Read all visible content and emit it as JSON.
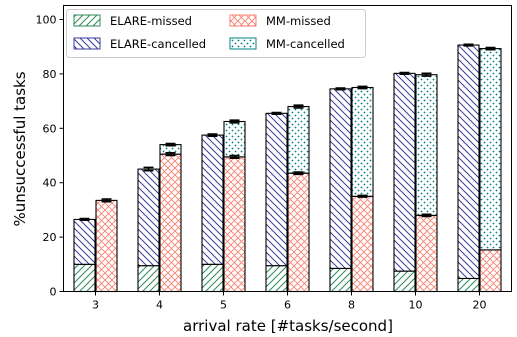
{
  "chart_data": {
    "type": "bar",
    "stacked": true,
    "grouped": true,
    "xlabel": "arrival rate [#tasks/second]",
    "ylabel": "%unsuccessful tasks",
    "categories": [
      "3",
      "4",
      "5",
      "6",
      "8",
      "10",
      "20"
    ],
    "ylim": [
      0,
      105
    ],
    "yticks": [
      0,
      20,
      40,
      60,
      80,
      100
    ],
    "legend_position": "top-left",
    "groups": [
      {
        "name": "ELARE",
        "segments": [
          {
            "name": "ELARE-missed",
            "values": [
              10,
              9.5,
              10,
              9.5,
              8.5,
              7.5,
              4.8
            ],
            "color": "#2e8b57",
            "pattern": "hatch-forward"
          },
          {
            "name": "ELARE-cancelled",
            "values": [
              16.5,
              35.5,
              47.5,
              56,
              66,
              72.7,
              85.8
            ],
            "color": "#3b3b9a",
            "pattern": "hatch-back"
          }
        ],
        "totals": [
          26.5,
          45,
          57.5,
          65.5,
          74.5,
          80.2,
          90.6
        ],
        "errors": [
          0.3,
          0.6,
          0.4,
          0.3,
          0.3,
          0.3,
          0.3
        ]
      },
      {
        "name": "MM",
        "segments": [
          {
            "name": "MM-missed",
            "values": [
              33.5,
              50.5,
              49.5,
              43.5,
              35,
              28,
              15.3
            ],
            "color": "#fa8072",
            "pattern": "crosshatch"
          },
          {
            "name": "MM-cancelled",
            "values": [
              0,
              3.5,
              13,
              24.5,
              40,
              51.7,
              74
            ],
            "color": "#008080",
            "pattern": "dots"
          }
        ],
        "totals": [
          33.5,
          54,
          62.5,
          68,
          75,
          79.7,
          89.3
        ],
        "errors": [
          0.5,
          0.4,
          0.5,
          0.5,
          0.4,
          0.5,
          0.4
        ],
        "missed_errors": [
          0,
          0.5,
          0.5,
          0.4,
          0.3,
          0.4,
          0
        ]
      }
    ]
  }
}
